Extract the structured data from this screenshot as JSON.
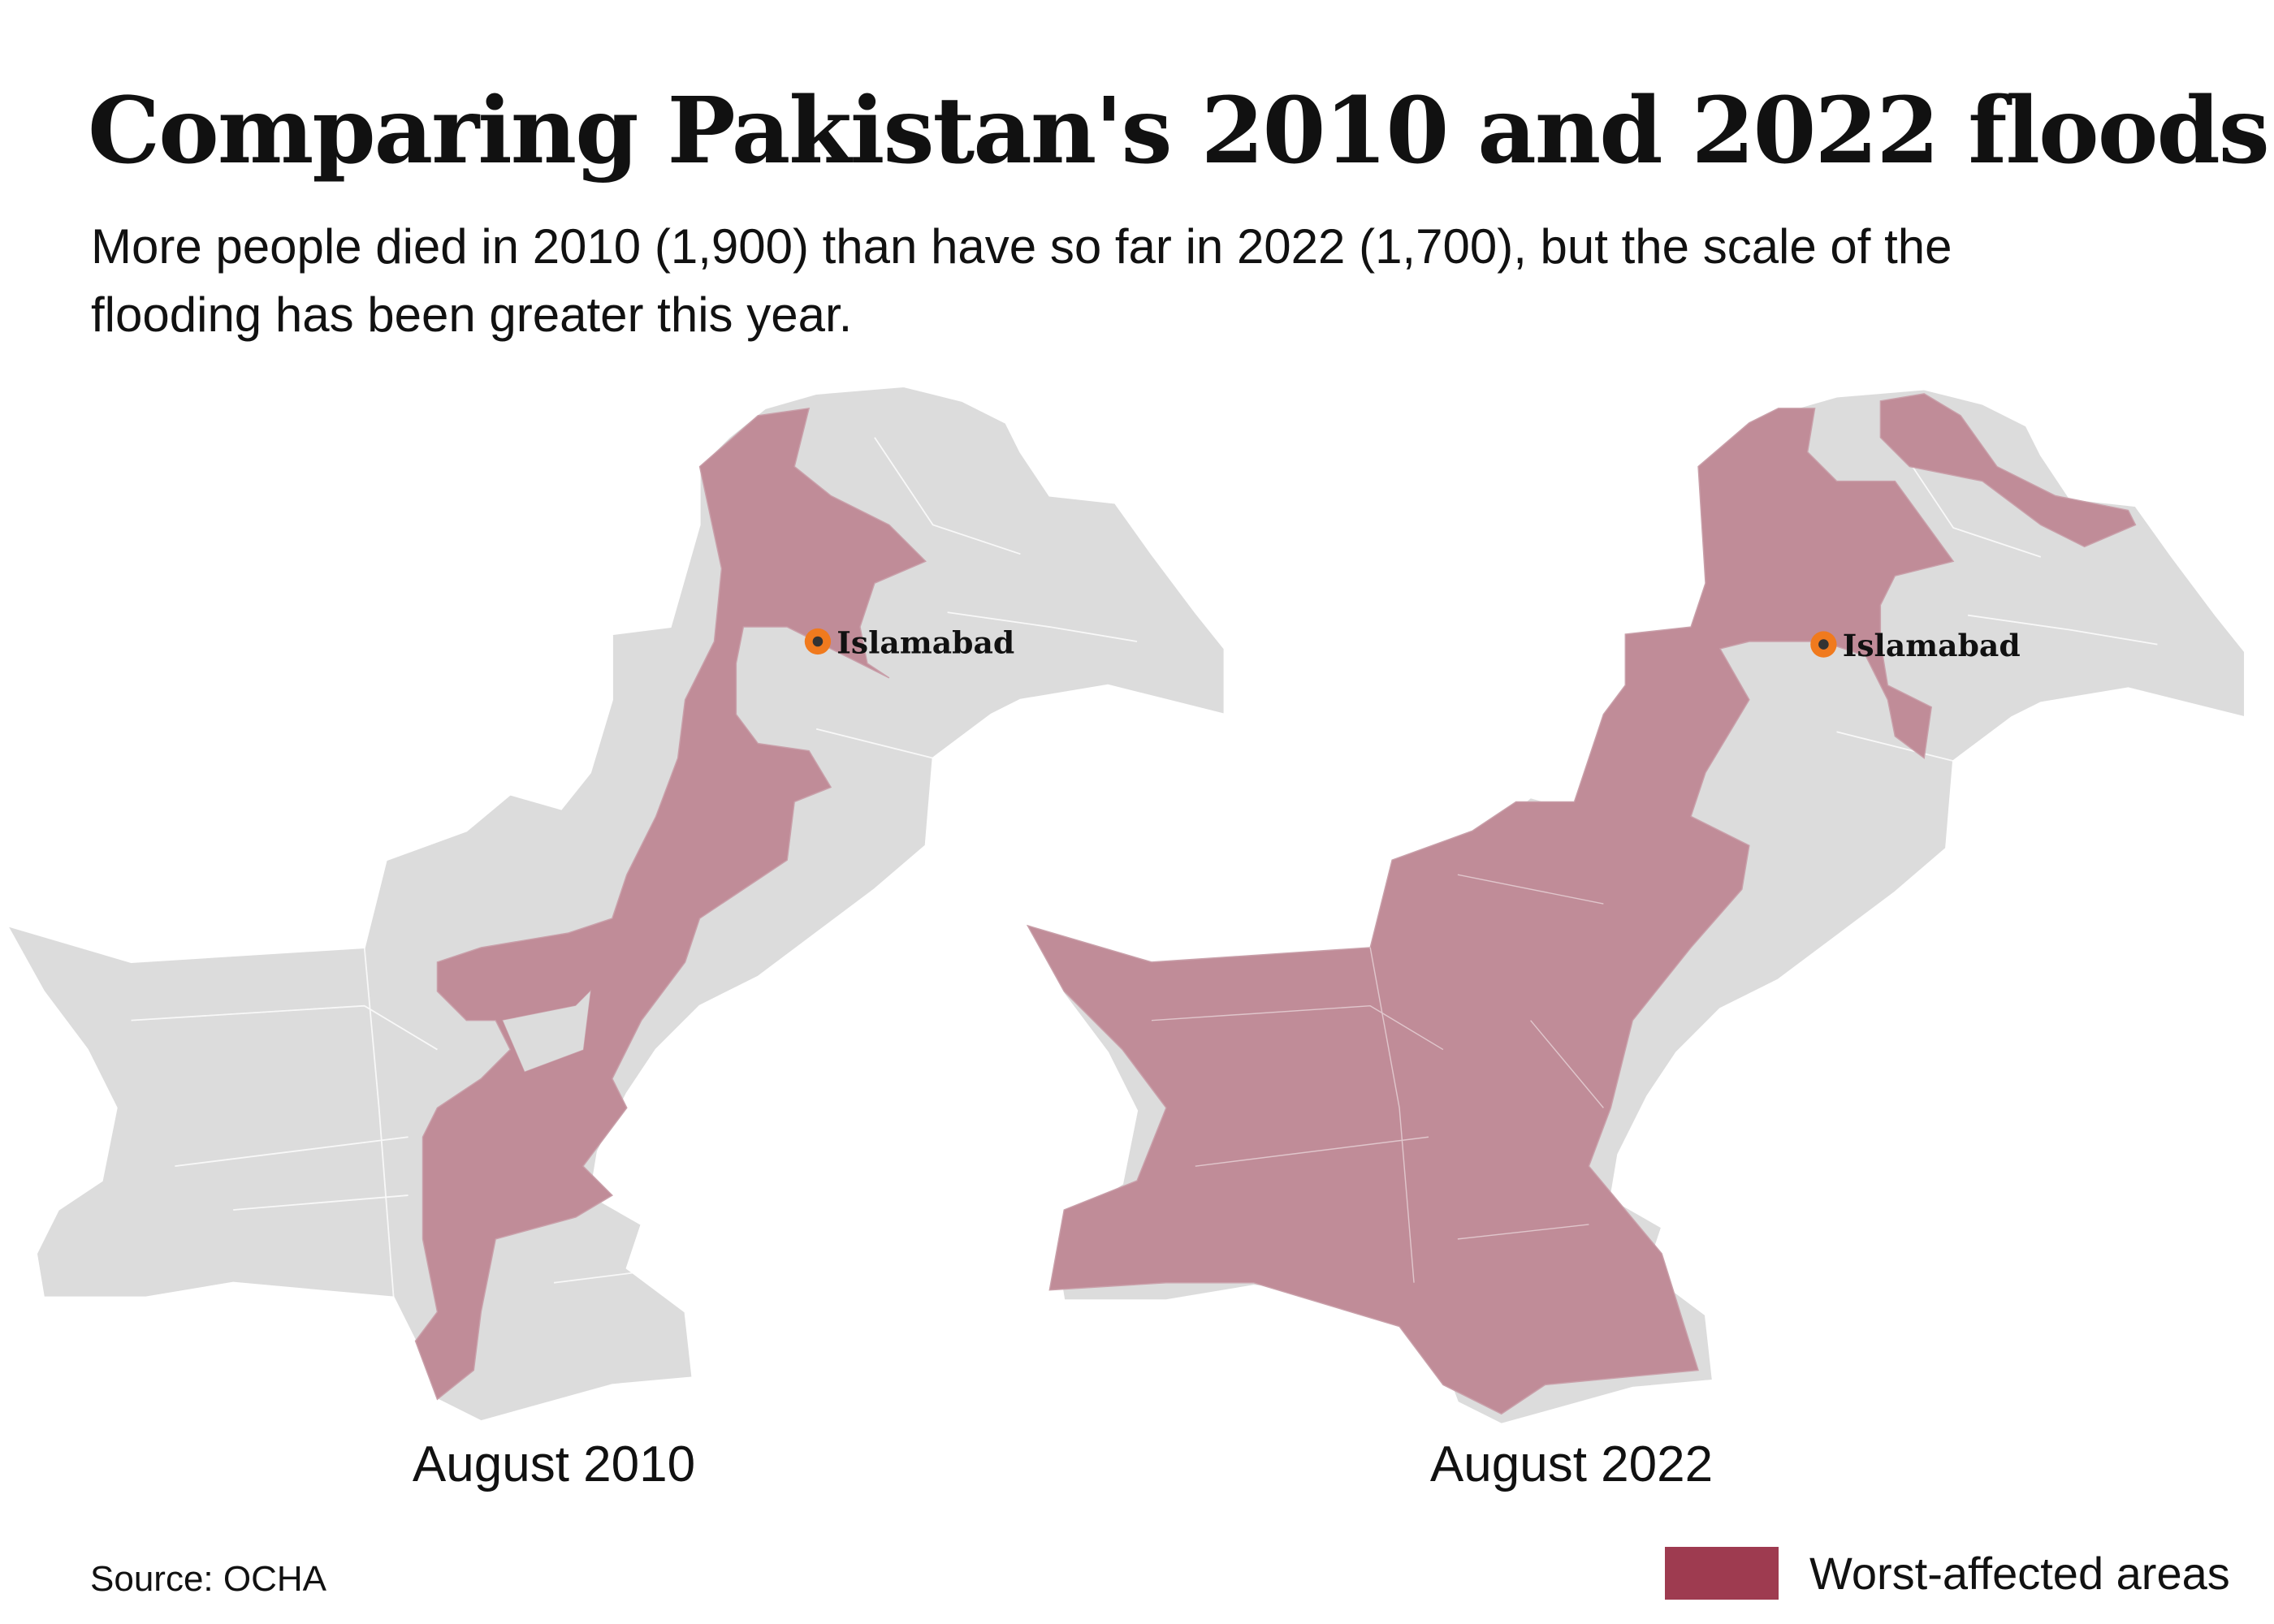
{
  "title": "Comparing Pakistan's 2010 and 2022 floods",
  "subtitle": "More people died in 2010 (1,900) than have so far in 2022 (1,700), but the scale of the flooding has been greater this year.",
  "maps": [
    {
      "label": "August 2010",
      "city": "Islamabad"
    },
    {
      "label": "August 2022",
      "city": "Islamabad"
    }
  ],
  "source": "Source: OCHA",
  "legend": {
    "label": "Worst-affected areas",
    "color": "#9e3b50"
  },
  "colors": {
    "land": "#dcdcdc",
    "flooded_fill": "#c08c98",
    "city_marker": "#f07a1e",
    "city_dot": "#333333"
  }
}
